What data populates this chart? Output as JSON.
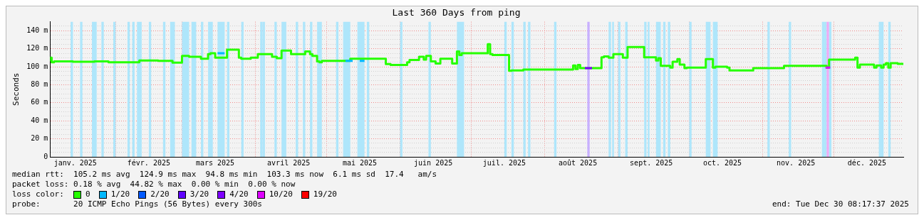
{
  "chart_data": {
    "type": "step",
    "title": "Last 360 Days from ping",
    "ylabel": "Seconds",
    "legend_title": "loss color:",
    "xlim": [
      "2025-01-04T08:17",
      "2025-12-30T08:17"
    ],
    "xticks": [
      {
        "value": "2025-01-15",
        "label": "janv. 2025"
      },
      {
        "value": "2025-02-01",
        "label": null
      },
      {
        "value": "2025-02-15",
        "label": "févr. 2025"
      },
      {
        "value": "2025-03-01",
        "label": null
      },
      {
        "value": "2025-03-15",
        "label": "mars 2025"
      },
      {
        "value": "2025-04-01",
        "label": null
      },
      {
        "value": "2025-04-15",
        "label": "avril 2025"
      },
      {
        "value": "2025-05-01",
        "label": null
      },
      {
        "value": "2025-05-15",
        "label": "mai 2025"
      },
      {
        "value": "2025-06-01",
        "label": null
      },
      {
        "value": "2025-06-15",
        "label": "juin 2025"
      },
      {
        "value": "2025-07-01",
        "label": null
      },
      {
        "value": "2025-07-15",
        "label": "juil. 2025"
      },
      {
        "value": "2025-08-01",
        "label": null
      },
      {
        "value": "2025-08-15",
        "label": "août 2025"
      },
      {
        "value": "2025-09-01",
        "label": null
      },
      {
        "value": "2025-09-15",
        "label": "sept. 2025"
      },
      {
        "value": "2025-10-01",
        "label": null
      },
      {
        "value": "2025-10-15",
        "label": "oct. 2025"
      },
      {
        "value": "2025-11-01",
        "label": null
      },
      {
        "value": "2025-11-15",
        "label": "nov. 2025"
      },
      {
        "value": "2025-12-01",
        "label": null
      },
      {
        "value": "2025-12-15",
        "label": "déc. 2025"
      }
    ],
    "ylim": [
      0,
      150
    ],
    "yticks": [
      0,
      {
        "value": 5,
        "label": null
      },
      {
        "value": 10,
        "label": null
      },
      {
        "value": 15,
        "label": null
      },
      {
        "value": 20,
        "label": "20 m"
      },
      {
        "value": 25,
        "label": null
      },
      {
        "value": 30,
        "label": null
      },
      {
        "value": 35,
        "label": null
      },
      {
        "value": 40,
        "label": "40 m"
      },
      {
        "value": 45,
        "label": null
      },
      {
        "value": 50,
        "label": null
      },
      {
        "value": 55,
        "label": null
      },
      {
        "value": 60,
        "label": "60 m"
      },
      {
        "value": 65,
        "label": null
      },
      {
        "value": 70,
        "label": null
      },
      {
        "value": 75,
        "label": null
      },
      {
        "value": 80,
        "label": "80 m"
      },
      {
        "value": 85,
        "label": null
      },
      {
        "value": 90,
        "label": null
      },
      {
        "value": 95,
        "label": null
      },
      {
        "value": 100,
        "label": "100 m"
      },
      {
        "value": 105,
        "label": null
      },
      {
        "value": 110,
        "label": null
      },
      {
        "value": 115,
        "label": null
      },
      {
        "value": 120,
        "label": "120 m"
      },
      {
        "value": 125,
        "label": null
      },
      {
        "value": 130,
        "label": null
      },
      {
        "value": 135,
        "label": null
      },
      {
        "value": 140,
        "label": "140 m"
      },
      {
        "value": 145,
        "label": null
      }
    ],
    "grid": true,
    "legend": "bottom left",
    "series": [
      {
        "name": "0",
        "color": "#26ff00",
        "x": [
          "2025-01-04T09:00",
          "2025-01-05",
          "2025-01-06",
          "2025-01-14",
          "2025-01-23",
          "2025-01-29",
          "2025-02-11",
          "2025-02-19",
          "2025-02-25",
          "2025-03-01",
          "2025-03-04",
          "2025-03-09",
          "2025-03-12",
          "2025-03-13",
          "2025-03-15",
          "2025-03-20",
          "2025-03-25",
          "2025-03-26",
          "2025-03-30",
          "2025-04-02",
          "2025-04-08",
          "2025-04-10",
          "2025-04-12",
          "2025-04-16",
          "2025-04-22",
          "2025-04-24",
          "2025-04-25",
          "2025-04-27",
          "2025-04-28",
          "2025-04-29",
          "2025-05-11",
          "2025-05-26",
          "2025-05-28",
          "2025-06-04",
          "2025-06-05",
          "2025-06-09",
          "2025-06-11",
          "2025-06-12",
          "2025-06-14",
          "2025-06-16",
          "2025-06-18",
          "2025-06-23",
          "2025-06-25",
          "2025-06-26",
          "2025-06-27",
          "2025-07-08",
          "2025-07-09",
          "2025-07-10",
          "2025-07-17",
          "2025-07-18",
          "2025-07-23",
          "2025-07-26",
          "2025-08-13",
          "2025-08-14",
          "2025-08-15",
          "2025-08-16",
          "2025-08-17",
          "2025-08-25",
          "2025-08-26",
          "2025-08-28",
          "2025-08-30",
          "2025-09-03",
          "2025-09-05",
          "2025-09-12",
          "2025-09-17",
          "2025-09-18",
          "2025-09-19",
          "2025-09-23",
          "2025-09-24",
          "2025-09-26",
          "2025-09-27",
          "2025-09-29",
          "2025-09-30",
          "2025-10-08",
          "2025-10-11",
          "2025-10-12",
          "2025-10-17",
          "2025-10-18",
          "2025-10-28",
          "2025-10-29",
          "2025-11-10",
          "2025-11-28",
          "2025-11-29",
          "2025-12-10",
          "2025-12-11",
          "2025-12-12",
          "2025-12-18",
          "2025-12-19",
          "2025-12-21",
          "2025-12-22",
          "2025-12-23",
          "2025-12-24",
          "2025-12-25",
          "2025-12-28",
          "2025-12-30T08:17"
        ],
        "values": [
          106,
          110,
          105,
          106,
          105.5,
          106,
          105,
          107,
          106.5,
          104.5,
          112,
          111,
          109,
          114,
          115,
          110,
          119,
          110,
          109,
          110,
          114,
          111,
          109.5,
          118,
          114,
          117,
          114,
          112,
          106,
          105,
          106.5,
          109,
          103,
          102,
          105,
          107.5,
          111,
          108,
          112,
          106,
          103.5,
          109,
          103.5,
          117,
          113,
          115,
          125,
          114,
          113,
          95.5,
          96,
          97,
          97,
          101.5,
          97.5,
          102,
          98.5,
          98.5,
          110.5,
          111.5,
          110,
          114,
          110,
          122,
          110.5,
          107,
          109.5,
          101,
          99,
          105.5,
          108.5,
          102.5,
          98.5,
          99,
          108.5,
          99,
          100,
          99,
          96,
          98.5,
          98.5,
          101,
          99,
          108,
          110,
          99,
          102.5,
          99,
          101.5,
          99,
          102.5,
          104,
          99,
          104,
          103.3
        ]
      },
      {
        "name": "1/20",
        "color": "#00b8ff",
        "x": [
          "2025-03-16",
          "2025-03-19",
          "2025-03-20",
          "2025-05-09",
          "2025-05-12",
          "2025-05-13",
          "2025-05-15",
          "2025-05-17"
        ],
        "values": [
          115,
          115,
          null,
          106.5,
          106.5,
          null,
          106.5,
          106.5
        ]
      },
      {
        "name": "2/20",
        "color": "#0059ff"
      },
      {
        "name": "3/20",
        "color": "#5e00ff"
      },
      {
        "name": "4/20",
        "color": "#7e00ff",
        "x": [
          "2025-08-18",
          "2025-08-21"
        ],
        "values": [
          98.5,
          98.5
        ]
      },
      {
        "name": "10/20",
        "color": "#dd00ff",
        "x": [
          "2025-11-27T12:00",
          "2025-11-29T12:00"
        ],
        "values": [
          99,
          99
        ]
      },
      {
        "name": "19/20",
        "color": "#ff0000"
      }
    ],
    "bands": [
      {
        "axis": "x",
        "from": "2025-01-13",
        "to": "2025-01-14",
        "color": "#aee6fb"
      },
      {
        "axis": "x",
        "from": "2025-01-17",
        "to": "2025-01-18",
        "color": "#aee6fb"
      },
      {
        "axis": "x",
        "from": "2025-01-22",
        "to": "2025-01-24",
        "color": "#aee6fb"
      },
      {
        "axis": "x",
        "from": "2025-01-26",
        "to": "2025-01-27",
        "color": "#aee6fb"
      },
      {
        "axis": "x",
        "from": "2025-01-31",
        "to": "2025-02-01",
        "color": "#aee6fb"
      },
      {
        "axis": "x",
        "from": "2025-02-06",
        "to": "2025-02-07",
        "color": "#aee6fb"
      },
      {
        "axis": "x",
        "from": "2025-02-08",
        "to": "2025-02-09",
        "color": "#aee6fb"
      },
      {
        "axis": "x",
        "from": "2025-02-10",
        "to": "2025-02-12",
        "color": "#aee6fb"
      },
      {
        "axis": "x",
        "from": "2025-02-15",
        "to": "2025-02-16",
        "color": "#aee6fb"
      },
      {
        "axis": "x",
        "from": "2025-02-21",
        "to": "2025-02-22",
        "color": "#aee6fb"
      },
      {
        "axis": "x",
        "from": "2025-02-24",
        "to": "2025-02-26",
        "color": "#aee6fb"
      },
      {
        "axis": "x",
        "from": "2025-03-01",
        "to": "2025-03-04",
        "color": "#aee6fb"
      },
      {
        "axis": "x",
        "from": "2025-03-05",
        "to": "2025-03-07",
        "color": "#aee6fb"
      },
      {
        "axis": "x",
        "from": "2025-03-09",
        "to": "2025-03-10",
        "color": "#aee6fb"
      },
      {
        "axis": "x",
        "from": "2025-03-12",
        "to": "2025-03-14",
        "color": "#aee6fb"
      },
      {
        "axis": "x",
        "from": "2025-03-16",
        "to": "2025-03-19",
        "color": "#aee6fb"
      },
      {
        "axis": "x",
        "from": "2025-03-20",
        "to": "2025-03-21",
        "color": "#aee6fb"
      },
      {
        "axis": "x",
        "from": "2025-03-26",
        "to": "2025-03-27",
        "color": "#aee6fb"
      },
      {
        "axis": "x",
        "from": "2025-04-03",
        "to": "2025-04-04",
        "color": "#aee6fb"
      },
      {
        "axis": "x",
        "from": "2025-04-04",
        "to": "2025-04-05",
        "color": "#aee6fb"
      },
      {
        "axis": "x",
        "from": "2025-04-09",
        "to": "2025-04-10",
        "color": "#aee6fb"
      },
      {
        "axis": "x",
        "from": "2025-04-12",
        "to": "2025-04-14",
        "color": "#aee6fb"
      },
      {
        "axis": "x",
        "from": "2025-04-18",
        "to": "2025-04-19",
        "color": "#aee6fb"
      },
      {
        "axis": "x",
        "from": "2025-04-21",
        "to": "2025-04-22",
        "color": "#aee6fb"
      },
      {
        "axis": "x",
        "from": "2025-04-24",
        "to": "2025-04-25",
        "color": "#aee6fb"
      },
      {
        "axis": "x",
        "from": "2025-04-27",
        "to": "2025-04-29",
        "color": "#aee6fb"
      },
      {
        "axis": "x",
        "from": "2025-05-05",
        "to": "2025-05-06",
        "color": "#aee6fb"
      },
      {
        "axis": "x",
        "from": "2025-05-08",
        "to": "2025-05-11",
        "color": "#aee6fb"
      },
      {
        "axis": "x",
        "from": "2025-05-14",
        "to": "2025-05-17",
        "color": "#aee6fb"
      },
      {
        "axis": "x",
        "from": "2025-05-18",
        "to": "2025-05-19",
        "color": "#aee6fb"
      },
      {
        "axis": "x",
        "from": "2025-06-01",
        "to": "2025-06-02",
        "color": "#aee6fb"
      },
      {
        "axis": "x",
        "from": "2025-06-13",
        "to": "2025-06-14",
        "color": "#aee6fb"
      },
      {
        "axis": "x",
        "from": "2025-06-25",
        "to": "2025-06-28",
        "color": "#aee6fb"
      },
      {
        "axis": "x",
        "from": "2025-07-15",
        "to": "2025-07-16",
        "color": "#aee6fb"
      },
      {
        "axis": "x",
        "from": "2025-07-18",
        "to": "2025-07-19",
        "color": "#aee6fb"
      },
      {
        "axis": "x",
        "from": "2025-07-23",
        "to": "2025-07-24",
        "color": "#aee6fb"
      },
      {
        "axis": "x",
        "from": "2025-07-25",
        "to": "2025-07-26",
        "color": "#aee6fb"
      },
      {
        "axis": "x",
        "from": "2025-08-05",
        "to": "2025-08-06",
        "color": "#aee6fb"
      },
      {
        "axis": "x",
        "from": "2025-08-19",
        "to": "2025-08-20",
        "color": "#c8b0ff"
      },
      {
        "axis": "x",
        "from": "2025-08-28",
        "to": "2025-08-29",
        "color": "#aee6fb"
      },
      {
        "axis": "x",
        "from": "2025-08-29T12:00",
        "to": "2025-08-30T06:00",
        "color": "#aee6fb"
      },
      {
        "axis": "x",
        "from": "2025-09-01",
        "to": "2025-09-02",
        "color": "#aee6fb"
      },
      {
        "axis": "x",
        "from": "2025-09-04",
        "to": "2025-09-05",
        "color": "#aee6fb"
      },
      {
        "axis": "x",
        "from": "2025-09-12",
        "to": "2025-09-13",
        "color": "#aee6fb"
      },
      {
        "axis": "x",
        "from": "2025-09-13T12:00",
        "to": "2025-09-14T06:00",
        "color": "#aee6fb"
      },
      {
        "axis": "x",
        "from": "2025-09-17",
        "to": "2025-09-19",
        "color": "#aee6fb"
      },
      {
        "axis": "x",
        "from": "2025-09-20",
        "to": "2025-09-21",
        "color": "#aee6fb"
      },
      {
        "axis": "x",
        "from": "2025-09-22",
        "to": "2025-09-23",
        "color": "#aee6fb"
      },
      {
        "axis": "x",
        "from": "2025-10-01",
        "to": "2025-10-02",
        "color": "#aee6fb"
      },
      {
        "axis": "x",
        "from": "2025-10-08",
        "to": "2025-10-10",
        "color": "#aee6fb"
      },
      {
        "axis": "x",
        "from": "2025-10-11",
        "to": "2025-10-13",
        "color": "#aee6fb"
      },
      {
        "axis": "x",
        "from": "2025-11-03",
        "to": "2025-11-04",
        "color": "#aee6fb"
      },
      {
        "axis": "x",
        "from": "2025-11-12",
        "to": "2025-11-13",
        "color": "#aee6fb"
      },
      {
        "axis": "x",
        "from": "2025-11-26",
        "to": "2025-11-27",
        "color": "#aee6fb"
      },
      {
        "axis": "x",
        "from": "2025-11-27",
        "to": "2025-11-28",
        "color": "#aee6fb"
      },
      {
        "axis": "x",
        "from": "2025-11-28",
        "to": "2025-11-29",
        "color": "#eeaaf5"
      },
      {
        "axis": "x",
        "from": "2025-11-29",
        "to": "2025-11-30",
        "color": "#aee6fb"
      },
      {
        "axis": "x",
        "from": "2025-12-20",
        "to": "2025-12-21",
        "color": "#aee6fb"
      },
      {
        "axis": "x",
        "from": "2025-12-21",
        "to": "2025-12-22",
        "color": "#aee6fb"
      },
      {
        "axis": "x",
        "from": "2025-12-24",
        "to": "2025-12-25",
        "color": "#aee6fb"
      }
    ],
    "annotations": [
      "median rtt:  105.2 ms avg  124.9 ms max  94.8 ms min  103.3 ms now  6.1 ms sd  17.4   am/s",
      "packet loss: 0.18 % avg  44.82 % max  0.00 % min  0.00 % now",
      "probe:       20 ICMP Echo Pings (56 Bytes) every 300s",
      "end: Tue Dec 30 08:17:37 2025"
    ]
  }
}
